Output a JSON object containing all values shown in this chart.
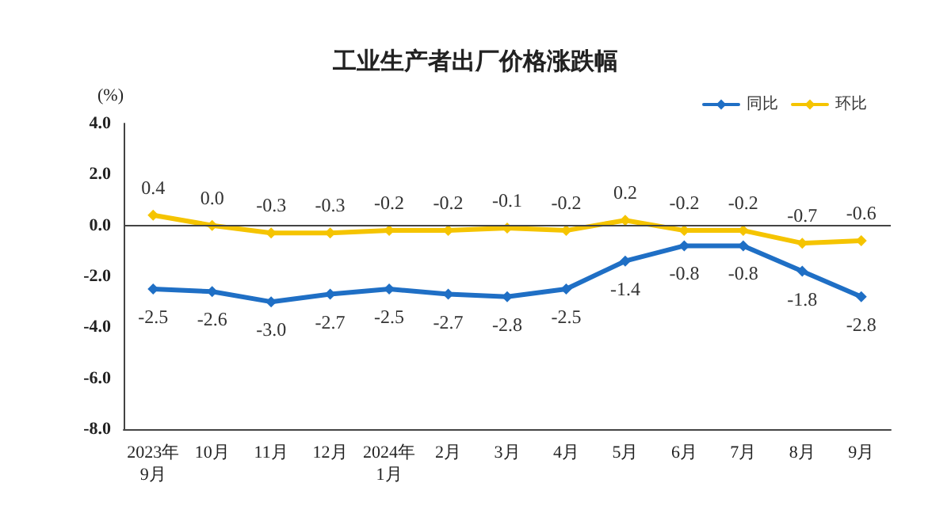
{
  "chart_data": {
    "type": "line",
    "title": "工业生产者出厂价格涨跌幅",
    "ylabel": "(%)",
    "categories": [
      "2023年\n9月",
      "10月",
      "11月",
      "12月",
      "2024年\n1月",
      "2月",
      "3月",
      "4月",
      "5月",
      "6月",
      "7月",
      "8月",
      "9月"
    ],
    "series": [
      {
        "name": "同比",
        "color": "#1f6fc5",
        "values": [
          -2.5,
          -2.6,
          -3.0,
          -2.7,
          -2.5,
          -2.7,
          -2.8,
          -2.5,
          -1.4,
          -0.8,
          -0.8,
          -1.8,
          -2.8
        ],
        "value_labels": [
          "-2.5",
          "-2.6",
          "-3.0",
          "-2.7",
          "-2.5",
          "-2.7",
          "-2.8",
          "-2.5",
          "-1.4",
          "-0.8",
          "-0.8",
          "-1.8",
          "-2.8"
        ]
      },
      {
        "name": "环比",
        "color": "#f5c400",
        "values": [
          0.4,
          0.0,
          -0.3,
          -0.3,
          -0.2,
          -0.2,
          -0.1,
          -0.2,
          0.2,
          -0.2,
          -0.2,
          -0.7,
          -0.6
        ],
        "value_labels": [
          "0.4",
          "0.0",
          "-0.3",
          "-0.3",
          "-0.2",
          "-0.2",
          "-0.1",
          "-0.2",
          "0.2",
          "-0.2",
          "-0.2",
          "-0.7",
          "-0.6"
        ]
      }
    ],
    "ylim": [
      -8,
      4
    ],
    "yticks": [
      {
        "value": -8,
        "label": "-8.0"
      },
      {
        "value": -6,
        "label": "-6.0"
      },
      {
        "value": -4,
        "label": "-4.0"
      },
      {
        "value": -2,
        "label": "-2.0"
      },
      {
        "value": 0,
        "label": "0.0"
      },
      {
        "value": 2,
        "label": "2.0"
      },
      {
        "value": 4,
        "label": "4.0"
      }
    ],
    "ref_lines": [
      {
        "axis": "y",
        "value": 0,
        "color": "#444444"
      }
    ],
    "legend": "top right",
    "grid": false,
    "marker": "diamond",
    "line_style": "solid"
  }
}
